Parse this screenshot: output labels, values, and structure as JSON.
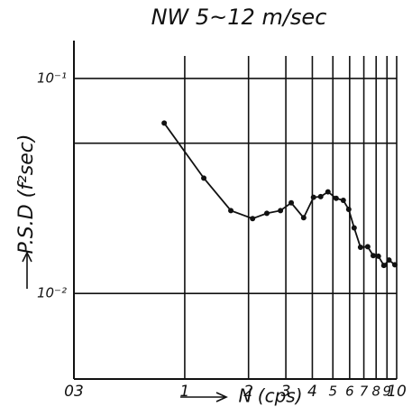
{
  "chart_data": {
    "type": "line",
    "title": "NW 5~12 m/sec",
    "y_label": "P.S.D (f²sec)",
    "x_label": "N (cps)",
    "log_x": true,
    "log_y": true,
    "grid": true,
    "color": "#111111",
    "xlim": [
      0.3,
      10
    ],
    "ylim": [
      0.004,
      0.15
    ],
    "xticks": [
      {
        "value": 0.3,
        "label": "03"
      },
      1,
      2,
      3,
      4,
      5,
      6,
      7,
      8,
      9,
      10
    ],
    "yticks": [
      {
        "value": 0.1,
        "label": "10⁻¹"
      },
      {
        "value": 0.01,
        "label": "10⁻²"
      }
    ],
    "minor_ygrid": [
      0.05
    ],
    "x": [
      0.8,
      1.23,
      1.65,
      2.09,
      2.44,
      2.83,
      3.18,
      3.64,
      4.05,
      4.38,
      4.74,
      5.18,
      5.6,
      5.94,
      6.3,
      6.75,
      7.3,
      7.75,
      8.2,
      8.7,
      9.2,
      9.8
    ],
    "values": [
      0.062,
      0.0344,
      0.0243,
      0.0223,
      0.0236,
      0.0243,
      0.0264,
      0.0225,
      0.028,
      0.0282,
      0.0297,
      0.0277,
      0.0271,
      0.0246,
      0.0202,
      0.0164,
      0.0165,
      0.015,
      0.0149,
      0.0135,
      0.0143,
      0.0136
    ]
  }
}
